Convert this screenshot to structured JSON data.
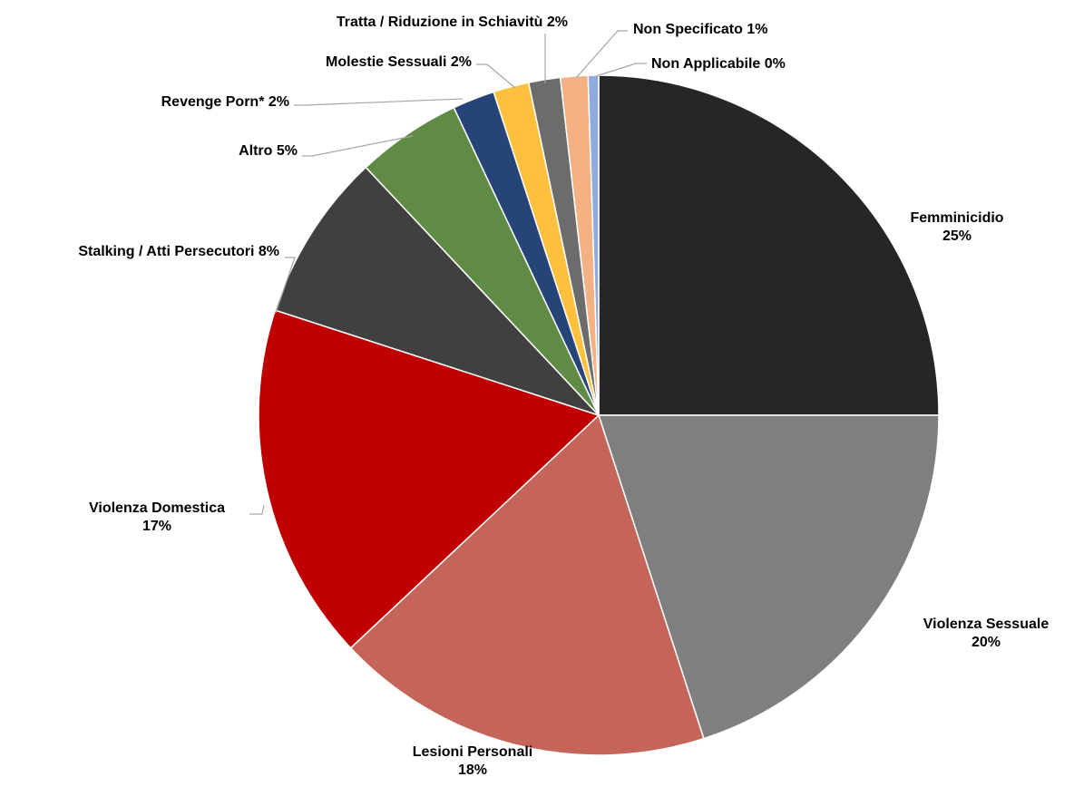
{
  "chart_data": {
    "type": "pie",
    "slices": [
      {
        "label": "Femminicidio",
        "value": 25,
        "display": "25%",
        "color": "#262626"
      },
      {
        "label": "Violenza Sessuale",
        "value": 20,
        "display": "20%",
        "color": "#7f7f7f"
      },
      {
        "label": "Lesioni Personali",
        "value": 18,
        "display": "18%",
        "color": "#c5655a"
      },
      {
        "label": "Violenza Domestica",
        "value": 17,
        "display": "17%",
        "color": "#c00000"
      },
      {
        "label": "Stalking / Atti Persecutori",
        "value": 8,
        "display": "8%",
        "color": "#404040"
      },
      {
        "label": "Altro",
        "value": 5,
        "display": "5%",
        "color": "#5f8b45"
      },
      {
        "label": "Revenge Porn*",
        "value": 2,
        "display": "2%",
        "color": "#264478"
      },
      {
        "label": "Molestie Sessuali",
        "value": 1.7,
        "display": "2%",
        "color": "#ffc13d"
      },
      {
        "label": "Tratta / Riduzione in Schiavitù",
        "value": 1.5,
        "display": "2%",
        "color": "#6c6c6c"
      },
      {
        "label": "Non Specificato",
        "value": 1.3,
        "display": "1%",
        "color": "#f4b183"
      },
      {
        "label": "Non Applicabile",
        "value": 0.5,
        "display": "0%",
        "color": "#8faadc"
      }
    ],
    "legend": "none",
    "start_angle": "12 o'clock, clockwise"
  }
}
